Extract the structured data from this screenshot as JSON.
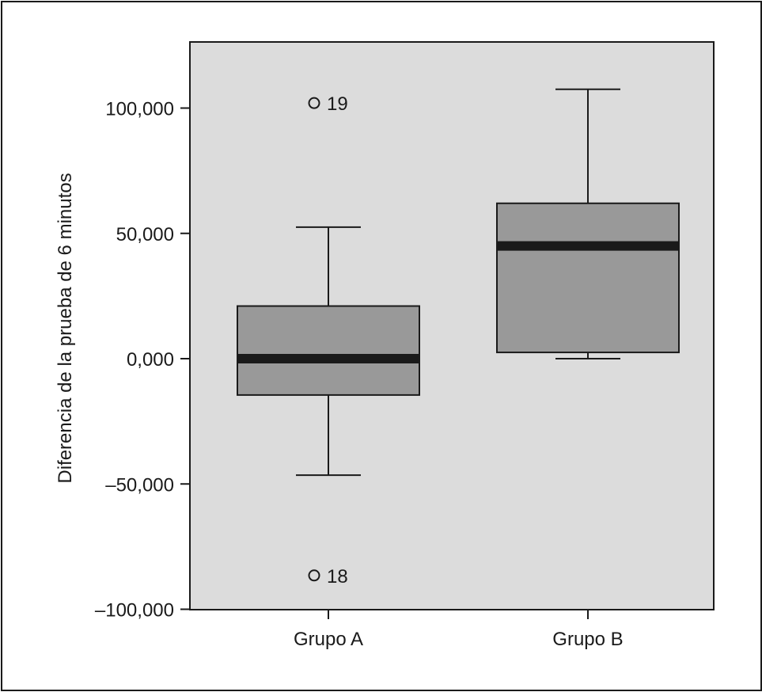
{
  "chart_data": {
    "type": "box",
    "title": "",
    "xlabel": "",
    "ylabel": "Diferencia de la prueba de 6 minutos",
    "ylim": [
      -100000,
      125000
    ],
    "yticks": [
      {
        "value": 100000,
        "label": "100,000"
      },
      {
        "value": 50000,
        "label": "50,000"
      },
      {
        "value": 0,
        "label": "0,000"
      },
      {
        "value": -50000,
        "label": "–50,000"
      },
      {
        "value": -100000,
        "label": "–100,000"
      }
    ],
    "categories": [
      "Grupo A",
      "Grupo B"
    ],
    "boxes": [
      {
        "name": "Grupo A",
        "whisker_low": -46500,
        "q1": -14500,
        "median": 0,
        "q3": 21000,
        "whisker_high": 52500,
        "outliers": [
          {
            "value": 102000,
            "label": "19"
          },
          {
            "value": -86500,
            "label": "18"
          }
        ]
      },
      {
        "name": "Grupo B",
        "whisker_low": 0,
        "q1": 2500,
        "median": 45000,
        "q3": 62000,
        "whisker_high": 107500,
        "outliers": []
      }
    ],
    "colors": {
      "plot_background": "#dcdcdc",
      "box_fill": "#999999",
      "median_line": "#1a1a1a",
      "stroke": "#1a1a1a"
    }
  }
}
